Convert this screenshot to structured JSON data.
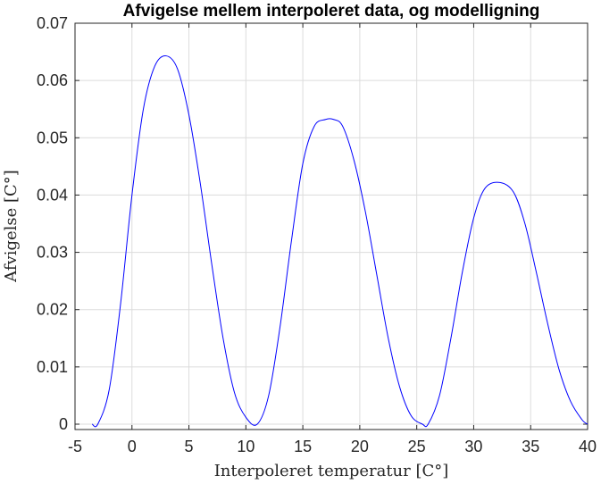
{
  "chart_data": {
    "type": "line",
    "title": "Afvigelse mellem interpoleret data, og modelligning",
    "xlabel": "Interpoleret temperatur [C°]",
    "ylabel": "Afvigelse [C°]",
    "xlim": [
      -5,
      40
    ],
    "ylim": [
      0,
      0.07
    ],
    "xticks": [
      "-5",
      "0",
      "5",
      "10",
      "15",
      "20",
      "25",
      "30",
      "35",
      "40"
    ],
    "yticks": [
      "0",
      "0.01",
      "0.02",
      "0.03",
      "0.04",
      "0.05",
      "0.06",
      "0.07"
    ],
    "grid": true,
    "box": true,
    "series": [
      {
        "color": "#0000ff",
        "x": [
          -3.5,
          -3.0,
          -2.0,
          -1.0,
          0.0,
          1.0,
          2.0,
          3.0,
          4.0,
          5.0,
          6.0,
          7.0,
          8.0,
          9.0,
          10.0,
          11.0,
          12.0,
          13.0,
          14.0,
          15.0,
          16.0,
          17.0,
          17.7,
          18.5,
          19.5,
          20.5,
          21.5,
          22.5,
          23.5,
          24.5,
          25.5,
          26.0,
          27.0,
          28.0,
          29.0,
          30.0,
          31.0,
          32.3,
          33.5,
          34.5,
          35.5,
          36.5,
          37.5,
          38.5,
          39.5,
          40.0
        ],
        "y": [
          0.0,
          0.0,
          0.006,
          0.021,
          0.04,
          0.055,
          0.0625,
          0.0643,
          0.062,
          0.054,
          0.042,
          0.028,
          0.015,
          0.0055,
          0.0012,
          0.0,
          0.005,
          0.017,
          0.032,
          0.0455,
          0.052,
          0.0532,
          0.0532,
          0.052,
          0.046,
          0.037,
          0.026,
          0.015,
          0.0065,
          0.0015,
          0.0,
          0.0,
          0.005,
          0.015,
          0.0265,
          0.036,
          0.0412,
          0.0422,
          0.0405,
          0.035,
          0.0265,
          0.0175,
          0.0095,
          0.004,
          0.0008,
          0.0
        ]
      }
    ]
  }
}
